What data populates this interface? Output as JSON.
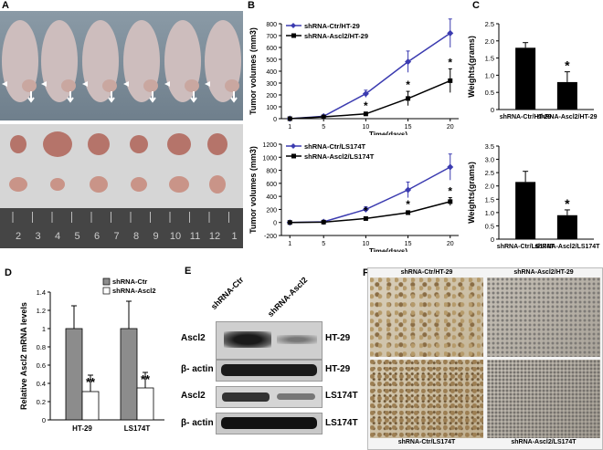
{
  "panels": {
    "A": "A",
    "B": "B",
    "C": "C",
    "D": "D",
    "E": "E",
    "F": "F"
  },
  "ruler": {
    "numbers": [
      "2",
      "3",
      "4",
      "5",
      "6",
      "7",
      "8",
      "9",
      "10",
      "11",
      "12",
      "1"
    ]
  },
  "colors": {
    "ctr": "#3b3bb0",
    "ascl2": "#000000",
    "bar_black": "#000000",
    "bar_gray": "#8c8c8c",
    "bar_white": "#ffffff"
  },
  "chart_data": [
    {
      "id": "B-top",
      "type": "line",
      "ylabel": "Tumor volumes (mm3)",
      "xlabel": "Time(days)",
      "x": [
        1,
        5,
        10,
        15,
        20
      ],
      "xticks": [
        "1",
        "5",
        "10",
        "15",
        "20"
      ],
      "ylim": [
        0,
        800
      ],
      "yticks": [
        "0",
        "100",
        "200",
        "300",
        "400",
        "500",
        "600",
        "700",
        "800"
      ],
      "series": [
        {
          "name": "shRNA-Ctr/HT-29",
          "values": [
            0,
            20,
            210,
            480,
            720
          ],
          "err": [
            0,
            8,
            30,
            90,
            120
          ]
        },
        {
          "name": "shRNA-Ascl2/HT-29",
          "values": [
            0,
            15,
            40,
            170,
            320
          ],
          "err": [
            0,
            5,
            15,
            60,
            100
          ]
        }
      ],
      "annotations": [
        "*",
        "*",
        "*"
      ],
      "legend": "top-left"
    },
    {
      "id": "B-bottom",
      "type": "line",
      "ylabel": "Tumor volumes (mm3)",
      "xlabel": "Time(days)",
      "x": [
        1,
        5,
        10,
        15,
        20
      ],
      "xticks": [
        "1",
        "5",
        "10",
        "15",
        "20"
      ],
      "ylim": [
        -200,
        1200
      ],
      "yticks": [
        "-200",
        "0",
        "200",
        "400",
        "600",
        "800",
        "1000",
        "1200"
      ],
      "series": [
        {
          "name": "shRNA-Ctr/LS174T",
          "values": [
            0,
            10,
            200,
            500,
            850
          ],
          "err": [
            0,
            10,
            40,
            120,
            200
          ]
        },
        {
          "name": "shRNA-Ascl2/LS174T",
          "values": [
            0,
            5,
            60,
            150,
            320
          ],
          "err": [
            0,
            5,
            20,
            30,
            60
          ]
        }
      ],
      "annotations": [
        "*",
        "*",
        "*"
      ],
      "legend": "top-left"
    },
    {
      "id": "C-top",
      "type": "bar",
      "ylabel": "Weights(grams)",
      "categories": [
        "shRNA-Ctr/HT-29",
        "shRNA-Ascl2/HT-29"
      ],
      "values": [
        1.8,
        0.8
      ],
      "err": [
        0.15,
        0.3
      ],
      "ylim": [
        0,
        2.5
      ],
      "yticks": [
        "0",
        "0.5",
        "1.0",
        "1.5",
        "2.0",
        "2.5"
      ],
      "annotations": [
        "*"
      ]
    },
    {
      "id": "C-bottom",
      "type": "bar",
      "ylabel": "Weights(grams)",
      "categories": [
        "shRNA-Ctr/LS174T",
        "shRNA-Ascl2/LS174T"
      ],
      "values": [
        2.15,
        0.9
      ],
      "err": [
        0.4,
        0.2
      ],
      "ylim": [
        0,
        3.5
      ],
      "yticks": [
        "0",
        "0.5",
        "1.0",
        "1.5",
        "2.0",
        "2.5",
        "3.0",
        "3.5"
      ],
      "annotations": [
        "*"
      ]
    },
    {
      "id": "D",
      "type": "bar",
      "ylabel": "Relative Ascl2 mRNA levels",
      "categories": [
        "HT-29",
        "LS174T"
      ],
      "series": [
        {
          "name": "shRNA-Ctr",
          "values": [
            1.0,
            1.0
          ],
          "err": [
            0.25,
            0.3
          ]
        },
        {
          "name": "shRNA-Ascl2",
          "values": [
            0.31,
            0.35
          ],
          "err": [
            0.18,
            0.17
          ]
        }
      ],
      "ylim": [
        0,
        1.4
      ],
      "yticks": [
        "0",
        "0.2",
        "0.4",
        "0.6",
        "0.8",
        "1",
        "1.2",
        "1.4"
      ],
      "annotations": [
        "**",
        "**"
      ],
      "legend": "top-right"
    }
  ],
  "blot": {
    "headers": [
      "shRNA-Ctr",
      "shRNA-Ascl2"
    ],
    "rows": [
      {
        "protein": "Ascl2",
        "cell": "HT-29"
      },
      {
        "protein": "β- actin",
        "cell": "HT-29"
      },
      {
        "protein": "Ascl2",
        "cell": "LS174T"
      },
      {
        "protein": "β- actin",
        "cell": "LS174T"
      }
    ]
  },
  "ihc": {
    "captions": [
      "shRNA-Ctr/HT-29",
      "shRNA-Ascl2/HT-29",
      "shRNA-Ctr/LS174T",
      "shRNA-Ascl2/LS174T"
    ]
  }
}
